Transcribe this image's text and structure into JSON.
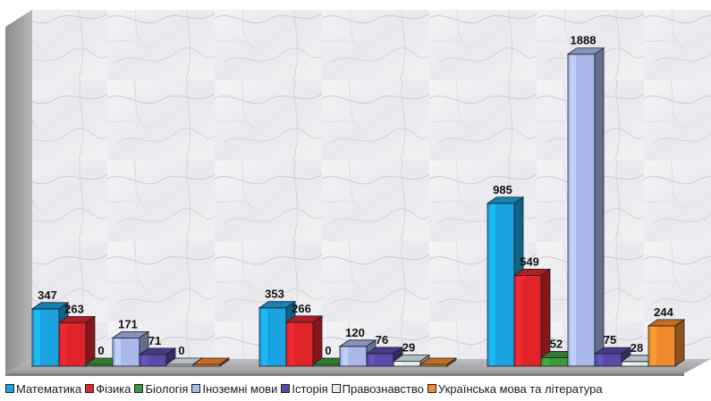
{
  "chart_data": {
    "type": "bar",
    "style": "3d-clustered-columns",
    "categories": [
      "",
      "",
      ""
    ],
    "series": [
      {
        "name": "Математика",
        "color": "#1aa3e0",
        "values": [
          347,
          353,
          985
        ]
      },
      {
        "name": "Фізика",
        "color": "#e0242a",
        "values": [
          263,
          266,
          549
        ]
      },
      {
        "name": "Біологія",
        "color": "#3c9a3a",
        "values": [
          0,
          0,
          52
        ]
      },
      {
        "name": "Іноземні мови",
        "color": "#a9b7ea",
        "values": [
          171,
          120,
          1888
        ]
      },
      {
        "name": "Історія",
        "color": "#5a4aa8",
        "values": [
          71,
          76,
          75
        ]
      },
      {
        "name": "Правознавство",
        "color": "#dfeef0",
        "values": [
          0,
          29,
          28
        ]
      },
      {
        "name": "Українська мова та література",
        "color": "#f08a2c",
        "values": [
          0,
          0,
          244
        ]
      }
    ],
    "value_labels": [
      [
        "347",
        "263",
        "0",
        "171",
        "71",
        "0",
        ""
      ],
      [
        "353",
        "266",
        "0",
        "120",
        "76",
        "29",
        ""
      ],
      [
        "985",
        "549",
        "52",
        "1888",
        "75",
        "28",
        "244"
      ]
    ],
    "ylim": [
      0,
      2000
    ],
    "grid": false,
    "legend_position": "bottom",
    "background": "marble"
  }
}
